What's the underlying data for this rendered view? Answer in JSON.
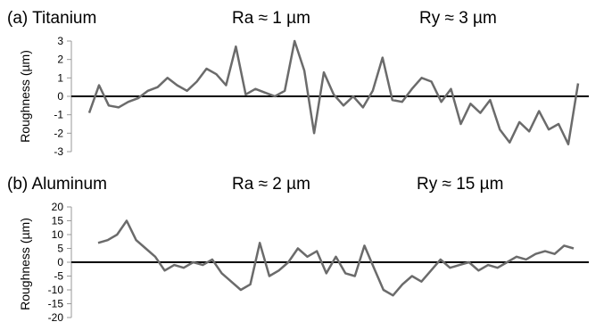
{
  "chart_data": [
    {
      "type": "line",
      "title": "(a) Titanium",
      "annotations": [
        "Ra ≈  1 µm",
        "Ry ≈  3 µm"
      ],
      "ylabel": "Roughness (µm)",
      "ylim": [
        -3,
        3
      ],
      "yticks": [
        "3",
        "2",
        "1",
        "0",
        "-1",
        "-2",
        "-3"
      ],
      "zero_line": true,
      "grid": false,
      "series": [
        {
          "x": [
            0,
            0.02,
            0.04,
            0.06,
            0.08,
            0.1,
            0.12,
            0.14,
            0.16,
            0.18,
            0.2,
            0.22,
            0.24,
            0.26,
            0.28,
            0.3,
            0.32,
            0.34,
            0.36,
            0.38,
            0.4,
            0.42,
            0.44,
            0.46,
            0.48,
            0.5,
            0.52,
            0.54,
            0.56,
            0.58,
            0.6,
            0.62,
            0.64,
            0.66,
            0.68,
            0.7,
            0.72,
            0.74,
            0.76,
            0.78,
            0.8,
            0.82,
            0.84,
            0.86,
            0.88,
            0.9,
            0.92,
            0.94,
            0.96,
            0.98,
            1.0
          ],
          "values": [
            -0.9,
            0.6,
            -0.5,
            -0.6,
            -0.3,
            -0.1,
            0.3,
            0.5,
            1.0,
            0.6,
            0.3,
            0.8,
            1.5,
            1.2,
            0.6,
            2.7,
            0.1,
            0.4,
            0.2,
            0.0,
            0.3,
            3.0,
            1.4,
            -2.0,
            1.3,
            0.1,
            -0.5,
            0.0,
            -0.6,
            0.3,
            2.1,
            -0.2,
            -0.3,
            0.4,
            1.0,
            0.8,
            -0.3,
            0.4,
            -1.5,
            -0.4,
            -0.9,
            -0.2,
            -1.8,
            -2.5,
            -1.4,
            -1.9,
            -0.8,
            -1.8,
            -1.5,
            -2.6,
            0.7
          ]
        }
      ]
    },
    {
      "type": "line",
      "title": "(b) Aluminum",
      "annotations": [
        "Ra ≈  2 µm",
        "Ry ≈  15 µm"
      ],
      "ylabel": "Roughness (µm)",
      "ylim": [
        -20,
        20
      ],
      "yticks": [
        "20",
        "15",
        "10",
        "5",
        "0",
        "-5",
        "-10",
        "-15",
        "-20"
      ],
      "zero_line": true,
      "grid": false,
      "series": [
        {
          "x": [
            0,
            0.02,
            0.04,
            0.06,
            0.08,
            0.1,
            0.12,
            0.14,
            0.16,
            0.18,
            0.2,
            0.22,
            0.24,
            0.26,
            0.28,
            0.3,
            0.32,
            0.34,
            0.36,
            0.38,
            0.4,
            0.42,
            0.44,
            0.46,
            0.48,
            0.5,
            0.52,
            0.54,
            0.56,
            0.58,
            0.6,
            0.62,
            0.64,
            0.66,
            0.68,
            0.7,
            0.72,
            0.74,
            0.76,
            0.78,
            0.8,
            0.82,
            0.84,
            0.86,
            0.88,
            0.9,
            0.92,
            0.94,
            0.96,
            0.98,
            1.0
          ],
          "values": [
            7,
            8,
            10,
            15,
            8,
            5,
            2,
            -3,
            -1,
            -2,
            0,
            -1,
            1,
            -4,
            -7,
            -10,
            -8,
            7,
            -5,
            -3,
            0,
            5,
            2,
            4,
            -4,
            2,
            -4,
            -5,
            6,
            -2,
            -10,
            -12,
            -8,
            -5,
            -7,
            -3,
            1,
            -2,
            -1,
            0,
            -3,
            -1,
            -2,
            0,
            2,
            1,
            3,
            4,
            3,
            6,
            5
          ]
        }
      ]
    }
  ]
}
